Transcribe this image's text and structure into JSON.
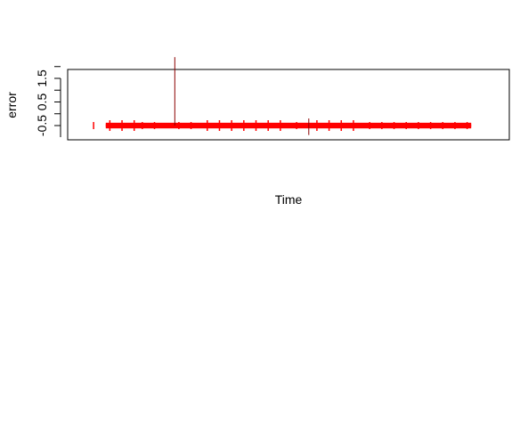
{
  "chart_data": {
    "type": "line",
    "title": "",
    "xlabel": "Time",
    "ylabel": "error",
    "ylim": [
      -0.7,
      2.6
    ],
    "xlim": [
      0,
      100
    ],
    "y_ticks": [
      -0.5,
      0.5,
      1.5
    ],
    "y_tick_labels": [
      "-0.5",
      "0.5",
      "1.5"
    ],
    "y_minor_ticks": [
      0.0,
      1.0,
      2.0
    ],
    "x_ticks_shown": false,
    "grid": false,
    "legend": "none",
    "series": [
      {
        "color": "#ff0000",
        "baseline": -0.5,
        "band": 0.12,
        "x_start": 5,
        "x_end": 95
      },
      {
        "color": "#8b0000",
        "spikes": [
          {
            "x": 22,
            "y_from": -0.5,
            "y_to": 2.4
          },
          {
            "x": 55,
            "y_from": -0.9,
            "y_to": -0.2
          }
        ]
      }
    ]
  }
}
